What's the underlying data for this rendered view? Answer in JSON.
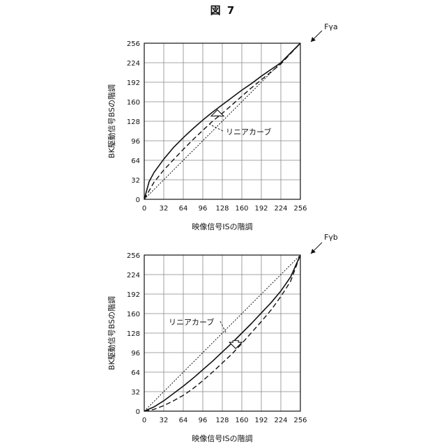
{
  "figure": {
    "title": "図 7"
  },
  "chart_data": [
    {
      "type": "line",
      "id": "Fγa",
      "panel_label": "Fγa",
      "xlabel": "映像信号ISの階調",
      "ylabel": "BK駆動信号BSの階調",
      "xlim": [
        0,
        256
      ],
      "ylim": [
        0,
        256
      ],
      "x_ticks": [
        0,
        32,
        64,
        96,
        128,
        160,
        192,
        224,
        256
      ],
      "y_ticks": [
        0,
        32,
        64,
        96,
        128,
        160,
        192,
        224,
        256
      ],
      "grid": true,
      "series": [
        {
          "style": "solid",
          "x": [
            0,
            8,
            16,
            32,
            48,
            64,
            80,
            96,
            112,
            128,
            144,
            160,
            176,
            192,
            208,
            224,
            240,
            256
          ],
          "y": [
            0,
            29,
            44,
            66,
            85,
            101,
            116,
            130,
            143,
            155,
            167,
            179,
            190,
            202,
            213,
            224,
            240,
            256
          ]
        },
        {
          "style": "dashed",
          "x": [
            0,
            16,
            32,
            48,
            64,
            80,
            96,
            112,
            128,
            144,
            160,
            176,
            192,
            208,
            224,
            240,
            256
          ],
          "y": [
            0,
            28,
            48,
            65,
            82,
            98,
            113,
            128,
            141,
            155,
            169,
            183,
            196,
            209,
            222,
            239,
            256
          ]
        },
        {
          "name": "リニアカーブ",
          "style": "dotted",
          "x": [
            0,
            256
          ],
          "y": [
            0,
            256
          ]
        }
      ],
      "annotation": {
        "text": "リニアカーブ",
        "arrow": "up"
      }
    },
    {
      "type": "line",
      "id": "Fγb",
      "panel_label": "Fγb",
      "xlabel": "映像信号ISの階調",
      "ylabel": "BK駆動信号BSの階調",
      "xlim": [
        0,
        256
      ],
      "ylim": [
        0,
        256
      ],
      "x_ticks": [
        0,
        32,
        64,
        96,
        128,
        160,
        192,
        224,
        256
      ],
      "y_ticks": [
        0,
        32,
        64,
        96,
        128,
        160,
        192,
        224,
        256
      ],
      "grid": true,
      "series": [
        {
          "style": "solid",
          "x": [
            0,
            16,
            32,
            48,
            64,
            80,
            96,
            112,
            128,
            144,
            160,
            176,
            192,
            208,
            224,
            240,
            256
          ],
          "y": [
            0,
            7,
            17,
            29,
            41,
            54,
            68,
            82,
            97,
            112,
            128,
            144,
            161,
            178,
            197,
            220,
            256
          ]
        },
        {
          "style": "dashed",
          "x": [
            0,
            16,
            32,
            48,
            64,
            80,
            96,
            112,
            128,
            144,
            160,
            176,
            192,
            208,
            224,
            240,
            256
          ],
          "y": [
            0,
            3,
            9,
            17,
            26,
            37,
            50,
            64,
            79,
            94,
            111,
            129,
            147,
            166,
            188,
            213,
            256
          ]
        },
        {
          "name": "リニアカーブ",
          "style": "dotted",
          "x": [
            0,
            256
          ],
          "y": [
            0,
            256
          ]
        }
      ],
      "annotation": {
        "text": "リニアカーブ",
        "arrow": "down"
      }
    }
  ]
}
